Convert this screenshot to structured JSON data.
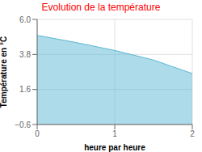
{
  "chart_data": {
    "type": "area",
    "title": "Evolution de la température",
    "x_label": "heure par heure",
    "y_label": "Température en °C",
    "x": [
      0,
      0.5,
      1.0,
      1.5,
      2.0
    ],
    "values": [
      5.0,
      4.55,
      4.05,
      3.45,
      2.6
    ],
    "xlim": [
      0,
      2
    ],
    "ylim": [
      -0.6,
      6.0
    ],
    "xticks": [
      0,
      1,
      2
    ],
    "yticks": [
      {
        "value": -0.6,
        "label": "−0.6"
      },
      1.6,
      3.8,
      {
        "value": 6.0,
        "label": "6.0"
      }
    ],
    "color": "#5bb8d4",
    "grid": true
  }
}
